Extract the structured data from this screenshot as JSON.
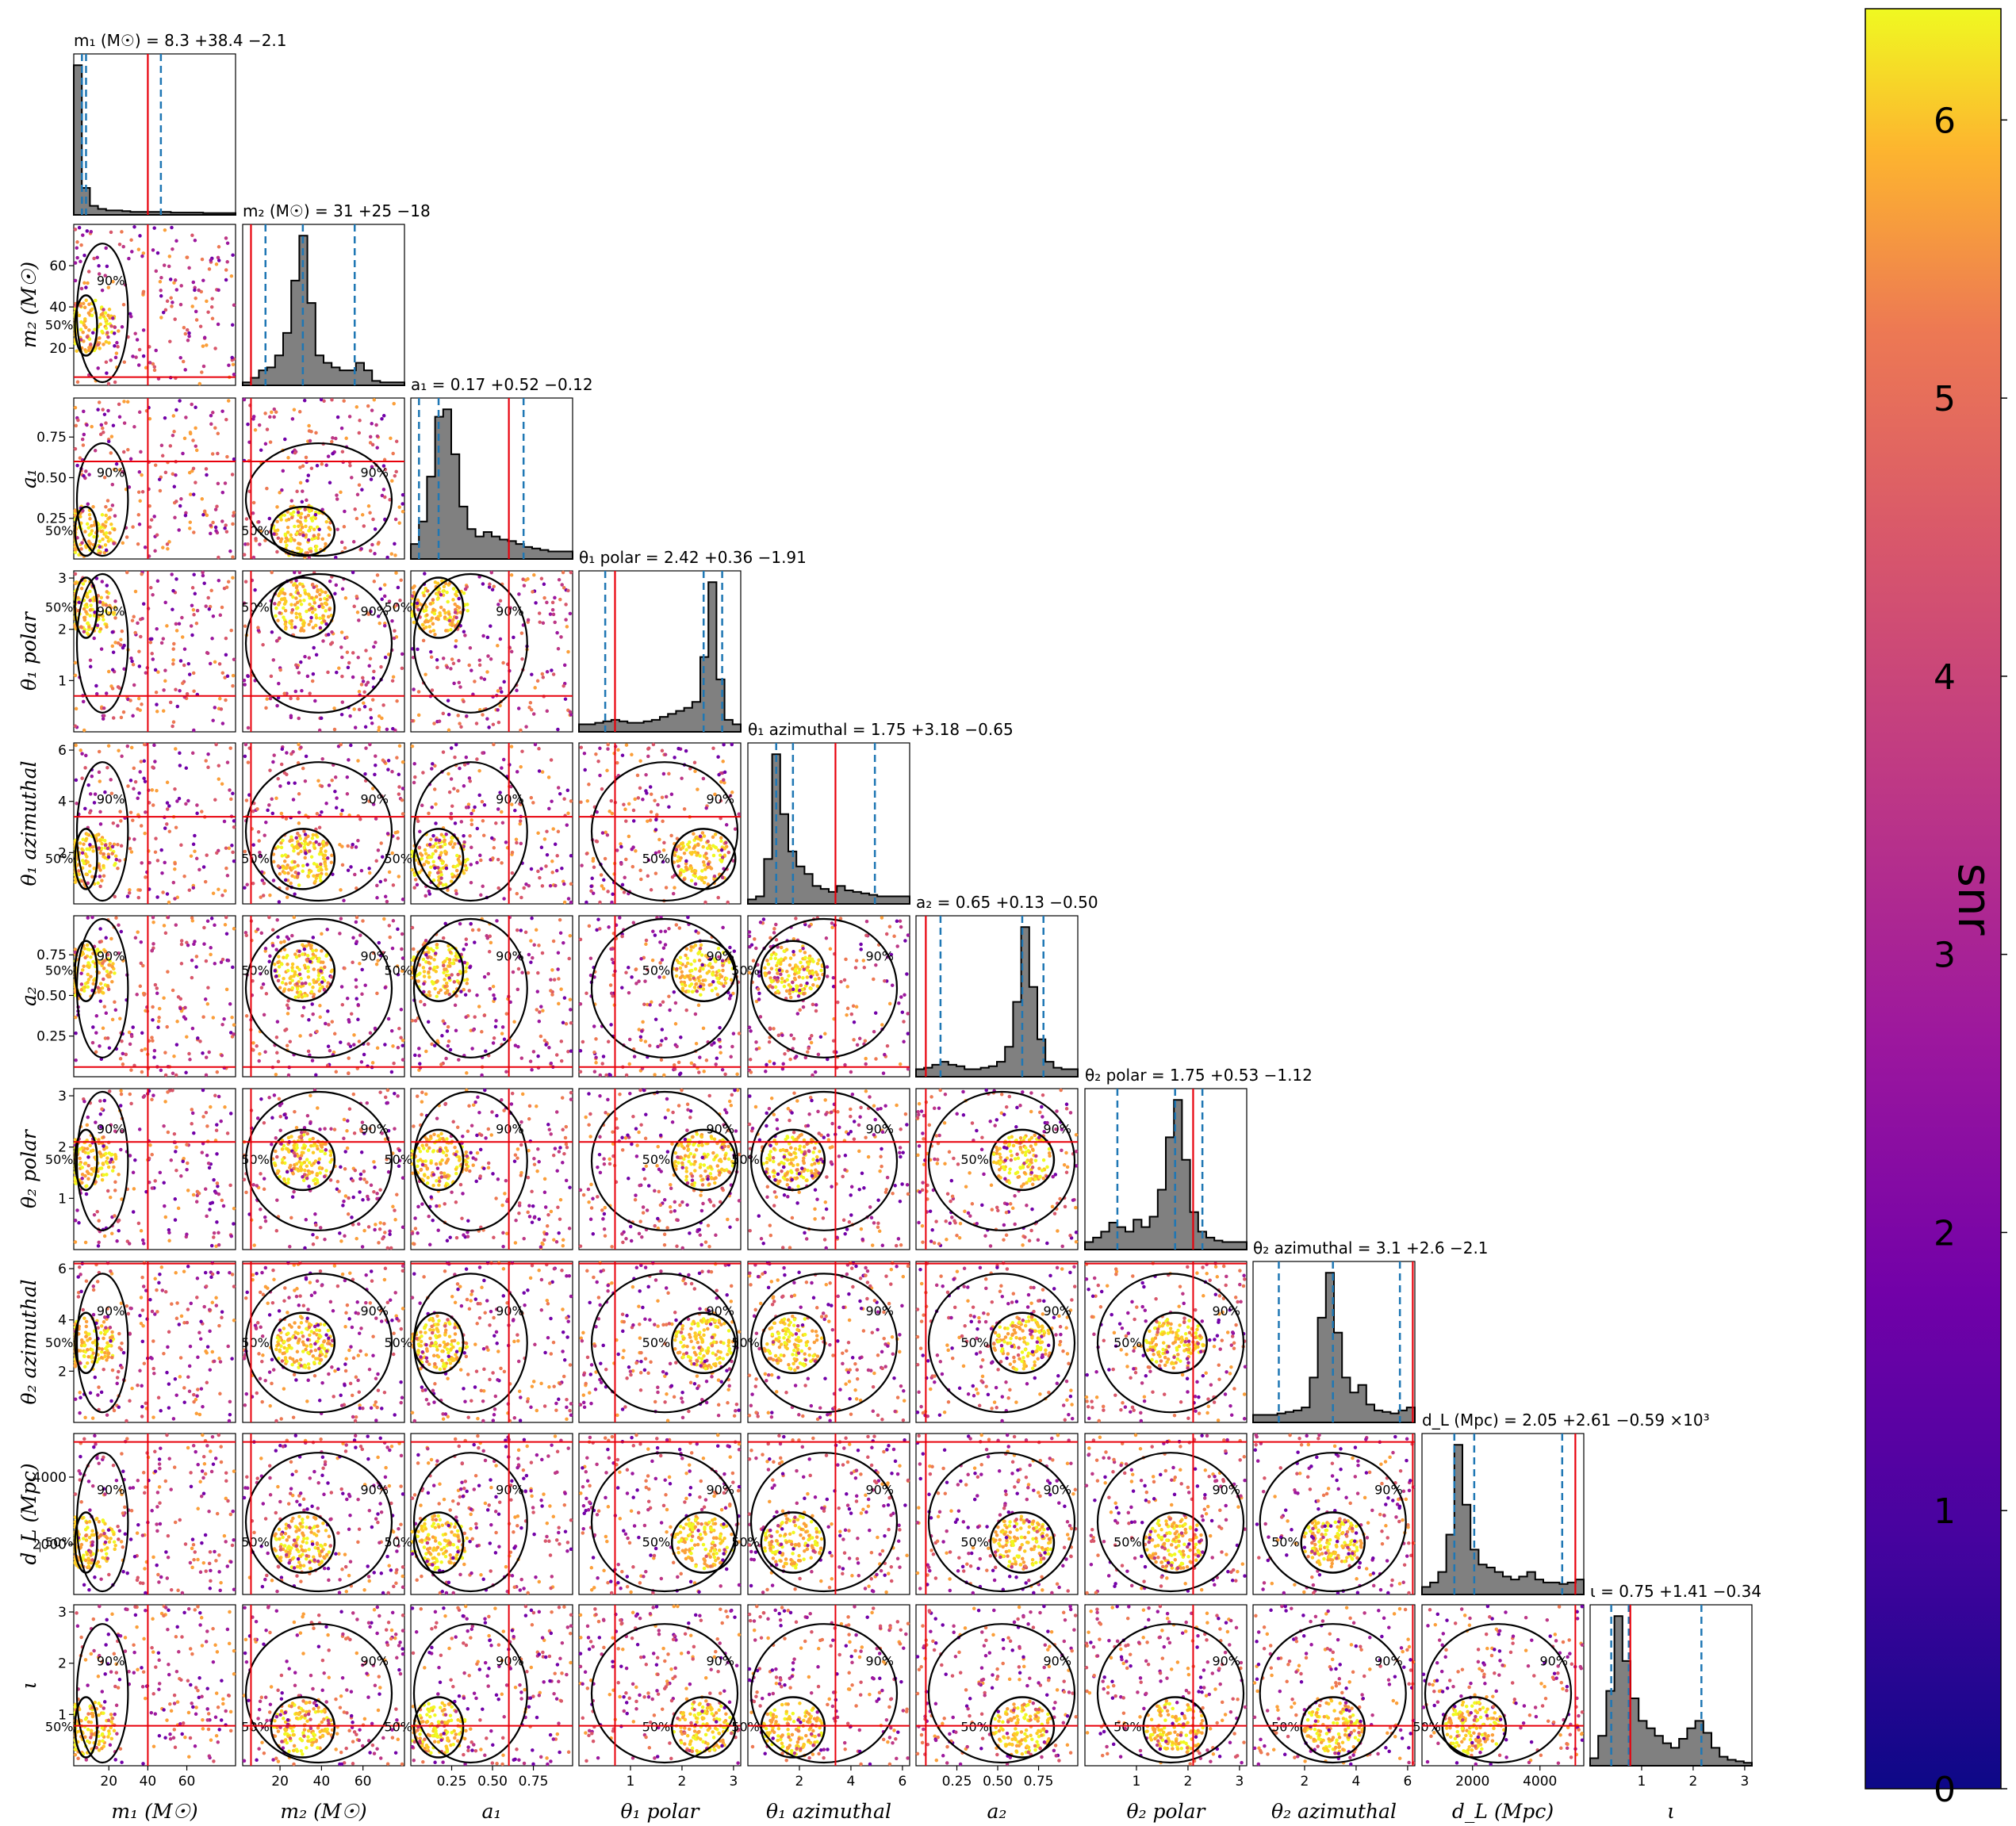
{
  "chart_data": {
    "type": "corner",
    "parameters": [
      {
        "key": "m1",
        "axis_label": "m₁ (M☉)",
        "title": "m₁ (M☉) = 8.3 +38.4 −2.1",
        "range": [
          2,
          85
        ],
        "ticks": [
          20,
          40,
          60
        ],
        "tick_labels": [
          "20",
          "40",
          "60"
        ],
        "truth": 40,
        "median": 8.3,
        "ci": [
          6.2,
          46.7
        ],
        "hist": [
          1.0,
          0.18,
          0.06,
          0.04,
          0.03,
          0.03,
          0.025,
          0.02,
          0.02,
          0.02,
          0.02,
          0.02,
          0.015,
          0.015,
          0.015,
          0.015,
          0.012,
          0.012,
          0.012,
          0.012
        ]
      },
      {
        "key": "m2",
        "axis_label": "m₂ (M☉)",
        "title": "m₂ (M☉) = 31 +25 −18",
        "range": [
          2,
          80
        ],
        "ticks": [
          20,
          40,
          60
        ],
        "tick_labels": [
          "20",
          "40",
          "60"
        ],
        "truth": 6,
        "median": 31,
        "ci": [
          13,
          56
        ],
        "hist": [
          0.02,
          0.05,
          0.1,
          0.12,
          0.2,
          0.35,
          0.7,
          1.0,
          0.55,
          0.2,
          0.15,
          0.12,
          0.1,
          0.1,
          0.15,
          0.1,
          0.03,
          0.02,
          0.02,
          0.02
        ]
      },
      {
        "key": "a1",
        "axis_label": "a₁",
        "title": "a₁ = 0.17 +0.52 −0.12",
        "range": [
          0.0,
          0.99
        ],
        "ticks": [
          0.25,
          0.5,
          0.75
        ],
        "tick_labels": [
          "0.25",
          "0.50",
          "0.75"
        ],
        "truth": 0.6,
        "median": 0.17,
        "ci": [
          0.05,
          0.69
        ],
        "hist": [
          0.1,
          0.25,
          0.55,
          0.95,
          1.0,
          0.7,
          0.35,
          0.2,
          0.15,
          0.18,
          0.15,
          0.13,
          0.12,
          0.1,
          0.08,
          0.07,
          0.06,
          0.05,
          0.05,
          0.05
        ]
      },
      {
        "key": "theta1_polar",
        "axis_label": "θ₁ polar",
        "title": "θ₁ polar = 2.42 +0.36 −1.91",
        "range": [
          0.0,
          3.14
        ],
        "ticks": [
          1,
          2,
          3
        ],
        "tick_labels": [
          "1",
          "2",
          "3"
        ],
        "truth": 0.7,
        "median": 2.42,
        "ci": [
          0.51,
          2.78
        ],
        "hist": [
          0.05,
          0.05,
          0.06,
          0.07,
          0.08,
          0.07,
          0.06,
          0.06,
          0.07,
          0.08,
          0.1,
          0.12,
          0.14,
          0.16,
          0.2,
          0.5,
          1.0,
          0.35,
          0.08,
          0.05
        ]
      },
      {
        "key": "theta1_azimuthal",
        "axis_label": "θ₁ azimuthal",
        "title": "θ₁ azimuthal = 1.75 +3.18 −0.65",
        "range": [
          0.0,
          6.28
        ],
        "ticks": [
          2,
          4,
          6
        ],
        "tick_labels": [
          "2",
          "4",
          "6"
        ],
        "truth": 3.4,
        "median": 1.75,
        "ci": [
          1.1,
          4.93
        ],
        "hist": [
          0.03,
          0.05,
          0.3,
          1.0,
          0.6,
          0.35,
          0.25,
          0.2,
          0.12,
          0.1,
          0.08,
          0.12,
          0.09,
          0.08,
          0.07,
          0.06,
          0.05,
          0.05,
          0.05,
          0.05
        ]
      },
      {
        "key": "a2",
        "axis_label": "a₂",
        "title": "a₂ = 0.65 +0.13 −0.50",
        "range": [
          0.0,
          0.99
        ],
        "ticks": [
          0.25,
          0.5,
          0.75
        ],
        "tick_labels": [
          "0.25",
          "0.50",
          "0.75"
        ],
        "truth": 0.06,
        "median": 0.65,
        "ci": [
          0.15,
          0.78
        ],
        "hist": [
          0.05,
          0.06,
          0.08,
          0.1,
          0.08,
          0.07,
          0.05,
          0.05,
          0.06,
          0.07,
          0.1,
          0.2,
          0.5,
          1.0,
          0.6,
          0.25,
          0.1,
          0.06,
          0.05,
          0.05
        ]
      },
      {
        "key": "theta2_polar",
        "axis_label": "θ₂ polar",
        "title": "θ₂ polar = 1.75 +0.53 −1.12",
        "range": [
          0.0,
          3.14
        ],
        "ticks": [
          1,
          2,
          3
        ],
        "tick_labels": [
          "1",
          "2",
          "3"
        ],
        "truth": 2.1,
        "median": 1.75,
        "ci": [
          0.63,
          2.28
        ],
        "hist": [
          0.05,
          0.08,
          0.12,
          0.18,
          0.15,
          0.12,
          0.2,
          0.15,
          0.22,
          0.4,
          0.75,
          1.0,
          0.6,
          0.25,
          0.12,
          0.08,
          0.06,
          0.05,
          0.05,
          0.05
        ]
      },
      {
        "key": "theta2_azimuthal",
        "axis_label": "θ₂ azimuthal",
        "title": "θ₂ azimuthal = 3.1 +2.6 −2.1",
        "range": [
          0.0,
          6.28
        ],
        "ticks": [
          2,
          4,
          6
        ],
        "tick_labels": [
          "2",
          "4",
          "6"
        ],
        "truth": 6.2,
        "median": 3.1,
        "ci": [
          1.0,
          5.7
        ],
        "hist": [
          0.05,
          0.05,
          0.05,
          0.06,
          0.07,
          0.08,
          0.1,
          0.3,
          0.7,
          1.0,
          0.6,
          0.3,
          0.2,
          0.25,
          0.12,
          0.08,
          0.07,
          0.06,
          0.08,
          0.1
        ]
      },
      {
        "key": "dL",
        "axis_label": "d_L (Mpc)",
        "title": "d_L (Mpc) = 2.05 +2.61 −0.59 ×10³",
        "range": [
          500,
          5300
        ],
        "ticks": [
          2000,
          4000
        ],
        "tick_labels": [
          "2000",
          "4000"
        ],
        "truth": 5050,
        "median": 2050,
        "ci": [
          1460,
          4660
        ],
        "hist": [
          0.05,
          0.08,
          0.15,
          0.4,
          1.0,
          0.6,
          0.3,
          0.2,
          0.18,
          0.15,
          0.12,
          0.1,
          0.12,
          0.15,
          0.1,
          0.08,
          0.08,
          0.07,
          0.08,
          0.1
        ]
      },
      {
        "key": "iota",
        "axis_label": "ι",
        "title": "ι = 0.75 +1.41 −0.34",
        "range": [
          0.0,
          3.14
        ],
        "ticks": [
          1,
          2,
          3
        ],
        "tick_labels": [
          "1",
          "2",
          "3"
        ],
        "truth": 0.78,
        "median": 0.75,
        "ci": [
          0.41,
          2.16
        ],
        "hist": [
          0.05,
          0.2,
          0.5,
          1.0,
          0.7,
          0.45,
          0.3,
          0.25,
          0.2,
          0.15,
          0.12,
          0.18,
          0.25,
          0.3,
          0.22,
          0.12,
          0.06,
          0.04,
          0.03,
          0.02
        ]
      }
    ],
    "y_axis_params": [
      "m2",
      "a1",
      "theta1_polar",
      "theta1_azimuthal",
      "a2",
      "theta2_polar",
      "theta2_azimuthal",
      "dL",
      "iota"
    ],
    "contour_levels": [
      "50%",
      "90%"
    ],
    "truth_color": "#e8000b",
    "ci_line_color": "#1f77b4",
    "hist_fill": "#808080",
    "colorbar": {
      "label": "snr",
      "min": 0,
      "max": 6.4,
      "ticks": [
        0,
        1,
        2,
        3,
        4,
        5,
        6
      ],
      "tick_labels": [
        "0",
        "1",
        "2",
        "3",
        "4",
        "5",
        "6"
      ],
      "colormap": "plasma"
    }
  }
}
